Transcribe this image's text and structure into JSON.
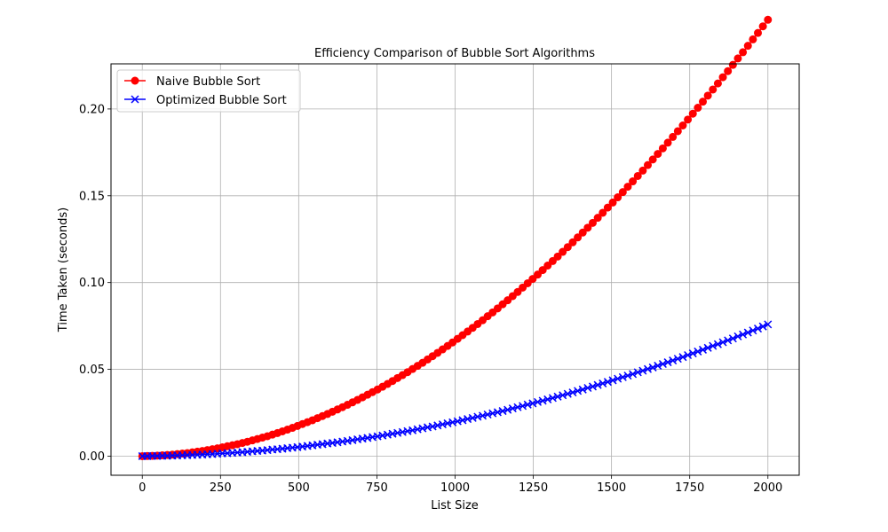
{
  "chart_data": {
    "type": "line",
    "title": "Efficiency Comparison of Bubble Sort Algorithms",
    "xlabel": "List Size",
    "ylabel": "Time Taken (seconds)",
    "xlim": [
      -100,
      2100
    ],
    "ylim": [
      -0.011,
      0.226
    ],
    "xticks": [
      0,
      250,
      500,
      750,
      1000,
      1250,
      1500,
      1750,
      2000
    ],
    "yticks": [
      0.0,
      0.05,
      0.1,
      0.15,
      0.2
    ],
    "ytick_labels": [
      "0.00",
      "0.05",
      "0.10",
      "0.15",
      "0.20"
    ],
    "grid": true,
    "legend_position": "upper-left",
    "x": [
      0,
      16,
      32,
      48,
      64,
      80,
      96,
      112,
      128,
      144,
      160,
      176,
      192,
      208,
      224,
      240,
      256,
      272,
      288,
      304,
      320,
      336,
      352,
      368,
      384,
      400,
      416,
      432,
      448,
      464,
      480,
      496,
      512,
      528,
      544,
      560,
      576,
      592,
      608,
      624,
      640,
      656,
      672,
      688,
      704,
      720,
      736,
      752,
      768,
      784,
      800,
      816,
      832,
      848,
      864,
      880,
      896,
      912,
      928,
      944,
      960,
      976,
      992,
      1008,
      1024,
      1040,
      1056,
      1072,
      1088,
      1104,
      1120,
      1136,
      1152,
      1168,
      1184,
      1200,
      1216,
      1232,
      1248,
      1264,
      1280,
      1296,
      1312,
      1328,
      1344,
      1360,
      1376,
      1392,
      1408,
      1424,
      1440,
      1456,
      1472,
      1488,
      1504,
      1520,
      1536,
      1552,
      1568,
      1584,
      1600,
      1616,
      1632,
      1648,
      1664,
      1680,
      1696,
      1712,
      1728,
      1744,
      1760,
      1776,
      1792,
      1808,
      1824,
      1840,
      1856,
      1872,
      1888,
      1904,
      1920,
      1936,
      1952,
      1968,
      1984,
      2000
    ],
    "series": [
      {
        "name": "Naive Bubble Sort",
        "color": "#ff0000",
        "marker": "circle",
        "values": [
          0.0,
          0.0001,
          0.0002,
          0.0003,
          0.0005,
          0.0007,
          0.0009,
          0.0012,
          0.0015,
          0.0018,
          0.0022,
          0.0026,
          0.003,
          0.0035,
          0.004,
          0.0045,
          0.0051,
          0.0057,
          0.0063,
          0.0069,
          0.0076,
          0.0083,
          0.0091,
          0.0099,
          0.0107,
          0.0115,
          0.0124,
          0.0133,
          0.0143,
          0.0153,
          0.0163,
          0.0174,
          0.0185,
          0.0196,
          0.0207,
          0.0219,
          0.0231,
          0.0243,
          0.0256,
          0.0269,
          0.0282,
          0.0296,
          0.031,
          0.0324,
          0.0339,
          0.0354,
          0.0369,
          0.0384,
          0.04,
          0.0416,
          0.0433,
          0.045,
          0.0467,
          0.0484,
          0.0502,
          0.052,
          0.0538,
          0.0557,
          0.0576,
          0.0595,
          0.0615,
          0.0635,
          0.0655,
          0.0676,
          0.0697,
          0.0718,
          0.0739,
          0.0761,
          0.0783,
          0.0806,
          0.0828,
          0.0851,
          0.0875,
          0.0898,
          0.0922,
          0.0946,
          0.0971,
          0.0996,
          0.1021,
          0.1046,
          0.1072,
          0.1098,
          0.1124,
          0.115,
          0.1177,
          0.1204,
          0.1232,
          0.126,
          0.1288,
          0.1316,
          0.1344,
          0.1373,
          0.1402,
          0.1432,
          0.1461,
          0.1491,
          0.1521,
          0.1552,
          0.1583,
          0.1614,
          0.1645,
          0.1677,
          0.1709,
          0.1741,
          0.1773,
          0.1806,
          0.1839,
          0.1872,
          0.1905,
          0.1939,
          0.1973,
          0.2007,
          0.2042,
          0.2077,
          0.2112,
          0.2147,
          0.2183,
          0.2218,
          0.2254,
          0.2291,
          0.2327,
          0.2364,
          0.2401,
          0.2438,
          0.2476,
          0.2514
        ]
      },
      {
        "name": "Optimized Bubble Sort",
        "color": "#0000ff",
        "marker": "x",
        "values": [
          0.0,
          0.0,
          0.0001,
          0.0001,
          0.0002,
          0.0002,
          0.0003,
          0.0004,
          0.0005,
          0.0006,
          0.0007,
          0.0008,
          0.0009,
          0.0011,
          0.0012,
          0.0014,
          0.0016,
          0.0017,
          0.0019,
          0.0021,
          0.0023,
          0.0025,
          0.0028,
          0.003,
          0.0032,
          0.0035,
          0.0038,
          0.004,
          0.0043,
          0.0046,
          0.0049,
          0.0052,
          0.0055,
          0.0059,
          0.0062,
          0.0066,
          0.0069,
          0.0073,
          0.0076,
          0.008,
          0.0084,
          0.0088,
          0.0092,
          0.0097,
          0.0101,
          0.0105,
          0.011,
          0.0114,
          0.0119,
          0.0124,
          0.0129,
          0.0134,
          0.0139,
          0.0144,
          0.0149,
          0.0155,
          0.016,
          0.0166,
          0.0171,
          0.0177,
          0.0183,
          0.0189,
          0.0195,
          0.0201,
          0.0207,
          0.0214,
          0.022,
          0.0227,
          0.0233,
          0.024,
          0.0247,
          0.0253,
          0.026,
          0.0267,
          0.0275,
          0.0282,
          0.0289,
          0.0297,
          0.0304,
          0.0312,
          0.0319,
          0.0327,
          0.0335,
          0.0343,
          0.0351,
          0.0359,
          0.0367,
          0.0376,
          0.0384,
          0.0393,
          0.0401,
          0.041,
          0.0419,
          0.0428,
          0.0437,
          0.0446,
          0.0455,
          0.0464,
          0.0473,
          0.0483,
          0.0492,
          0.0502,
          0.0511,
          0.0521,
          0.0531,
          0.0541,
          0.0551,
          0.0561,
          0.0571,
          0.0582,
          0.0592,
          0.0603,
          0.0613,
          0.0624,
          0.0635,
          0.0645,
          0.0656,
          0.0667,
          0.0678,
          0.069,
          0.0701,
          0.0712,
          0.0724,
          0.0735,
          0.0747,
          0.0759
        ]
      }
    ]
  }
}
